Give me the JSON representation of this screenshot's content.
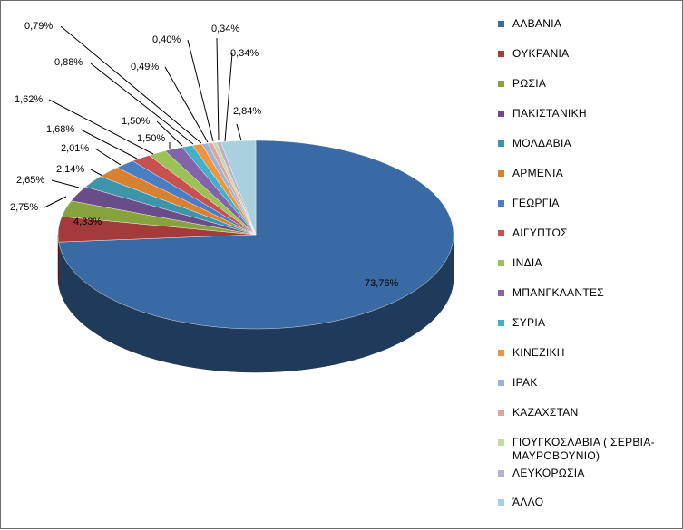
{
  "chart_data": {
    "type": "pie",
    "style": "3d",
    "legend_position": "right",
    "categories": [
      "ΑΛΒΑΝΙΑ",
      "ΟΥΚΡΑΝΙΑ",
      "ΡΩΣΙΑ",
      "ΠΑΚΙΣΤΑΝΙΚΗ",
      "ΜΟΛΔΑΒΙΑ",
      "ΑΡΜΕΝΙΑ",
      "ΓΕΩΡΓΙΑ",
      "ΑΙΓΥΠΤΟΣ",
      "ΙΝΔΙΑ",
      "ΜΠΑΝΓΚΛΑΝΤΕΣ",
      "ΣΥΡΙΑ",
      "ΚΙΝΕΖΙΚΗ",
      "ΙΡΑΚ",
      "ΚΑΖΑΧΣΤΑΝ",
      "ΓΙΟΥΓΚΟΣΛΑΒΙΑ ( ΣΕΡΒΙΑ-ΜΑΥΡΟΒΟΥΝΙΟ)",
      "ΛΕΥΚΟΡΩΣΙΑ",
      "ΆΛΛΟ"
    ],
    "values": [
      73.76,
      4.33,
      2.75,
      2.65,
      2.14,
      2.01,
      1.68,
      1.62,
      1.5,
      1.5,
      0.88,
      0.79,
      0.49,
      0.4,
      0.34,
      0.34,
      2.84
    ],
    "data_labels": [
      "73,76%",
      "4,33%",
      "2,75%",
      "2,65%",
      "2,14%",
      "2,01%",
      "1,68%",
      "1,62%",
      "1,50%",
      "1,50%",
      "0,88%",
      "0,79%",
      "0,49%",
      "0,40%",
      "0,34%",
      "0,34%",
      "2,84%"
    ],
    "colors": [
      "#3A6AA3",
      "#A33B3A",
      "#86A33E",
      "#6B4C8A",
      "#3C95AB",
      "#D98132",
      "#4A7EC4",
      "#C8504E",
      "#9CC157",
      "#8364AB",
      "#42B0C8",
      "#F0953D",
      "#9BB3D8",
      "#DBA5A4",
      "#C3D9A6",
      "#B9AECB",
      "#A9D0DE"
    ]
  }
}
